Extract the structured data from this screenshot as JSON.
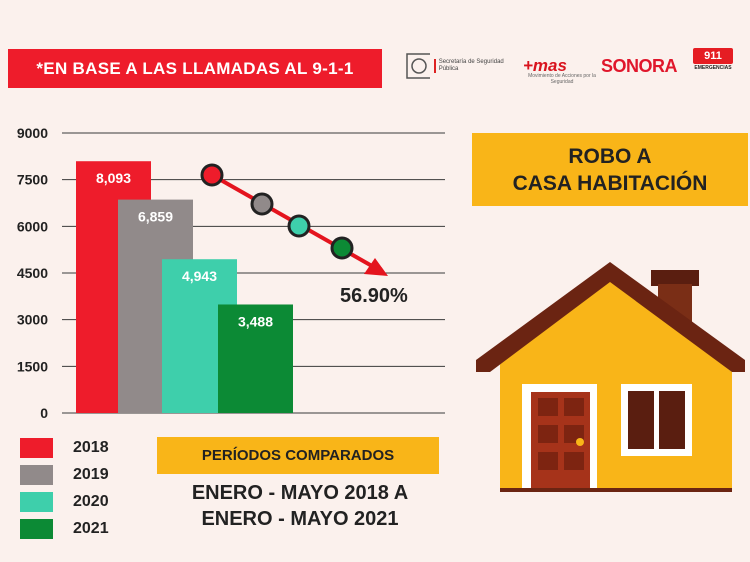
{
  "banner": "*EN BASE A LAS LLAMADAS AL 9-1-1",
  "logos": {
    "secretaria": "Secretaría de Seguridad Pública",
    "mas": "+mas",
    "mas_sub": "Movimiento de Acciones por la Seguridad",
    "sonora": "SONORA",
    "n911": "911",
    "n911_sub": "EMERGENCIAS"
  },
  "title": {
    "line1": "ROBO A",
    "line2": "CASA HABITACIÓN"
  },
  "period_title": "PERÍODOS COMPARADOS",
  "dates": {
    "line1": "ENERO - MAYO 2018 A",
    "line2": "ENERO - MAYO 2021"
  },
  "colors": {
    "2018": "#ee1c2b",
    "2019": "#918a8a",
    "2020": "#3ecfab",
    "2021": "#0c8a35",
    "accent": "#f9b518"
  },
  "chart_data": {
    "type": "bar",
    "categories": [
      "2018",
      "2019",
      "2020",
      "2021"
    ],
    "values": [
      8093,
      6859,
      4943,
      3488
    ],
    "value_labels": [
      "8,093",
      "6,859",
      "4,943",
      "3,488"
    ],
    "yticks": [
      "0",
      "1500",
      "3000",
      "4500",
      "6000",
      "7500",
      "9000"
    ],
    "ylim": [
      0,
      9000
    ],
    "change_label": "56.90%",
    "legend": [
      "2018",
      "2019",
      "2020",
      "2021"
    ],
    "grid": true
  }
}
